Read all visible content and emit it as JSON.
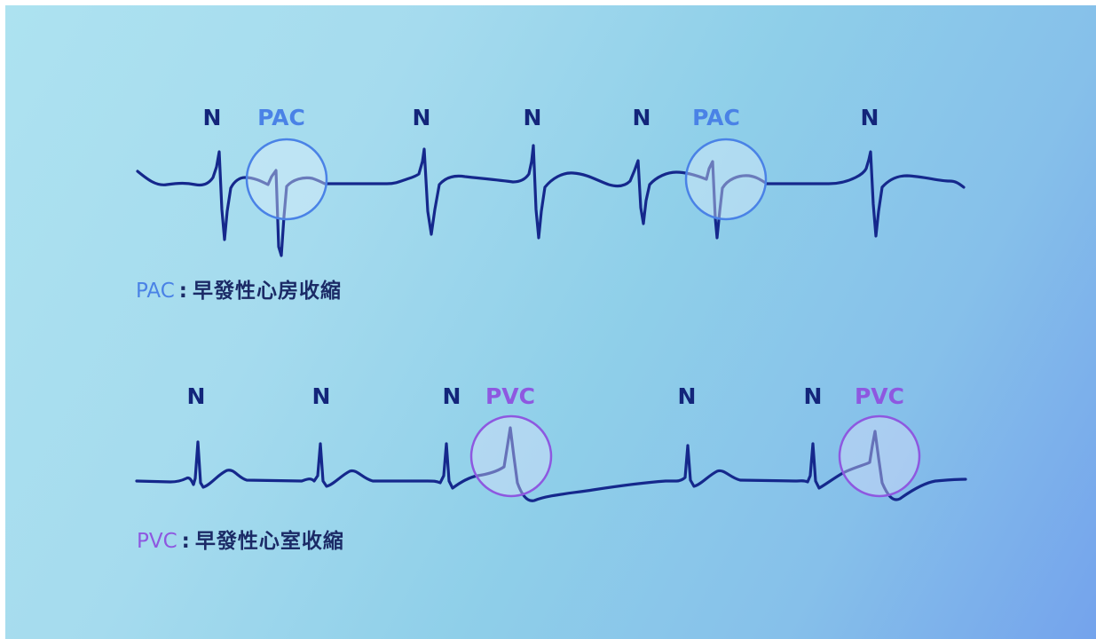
{
  "colors": {
    "normal_label": "#13257a",
    "pac_accent": "#4a82e6",
    "pvc_accent": "#8e58e0",
    "trace": "#15288c",
    "description_text": "#1b2a66"
  },
  "pac_strip": {
    "beats": [
      {
        "label": "N",
        "type": "normal"
      },
      {
        "label": "PAC",
        "type": "pac"
      },
      {
        "label": "N",
        "type": "normal"
      },
      {
        "label": "N",
        "type": "normal"
      },
      {
        "label": "N",
        "type": "normal"
      },
      {
        "label": "PAC",
        "type": "pac"
      },
      {
        "label": "N",
        "type": "normal"
      }
    ],
    "legend": {
      "abbr": "PAC",
      "separator": ":",
      "description": "早發性心房收縮"
    }
  },
  "pvc_strip": {
    "beats": [
      {
        "label": "N",
        "type": "normal"
      },
      {
        "label": "N",
        "type": "normal"
      },
      {
        "label": "N",
        "type": "normal"
      },
      {
        "label": "PVC",
        "type": "pvc"
      },
      {
        "label": "N",
        "type": "normal"
      },
      {
        "label": "N",
        "type": "normal"
      },
      {
        "label": "PVC",
        "type": "pvc"
      }
    ],
    "legend": {
      "abbr": "PVC",
      "separator": ":",
      "description": "早發性心室收縮"
    }
  }
}
